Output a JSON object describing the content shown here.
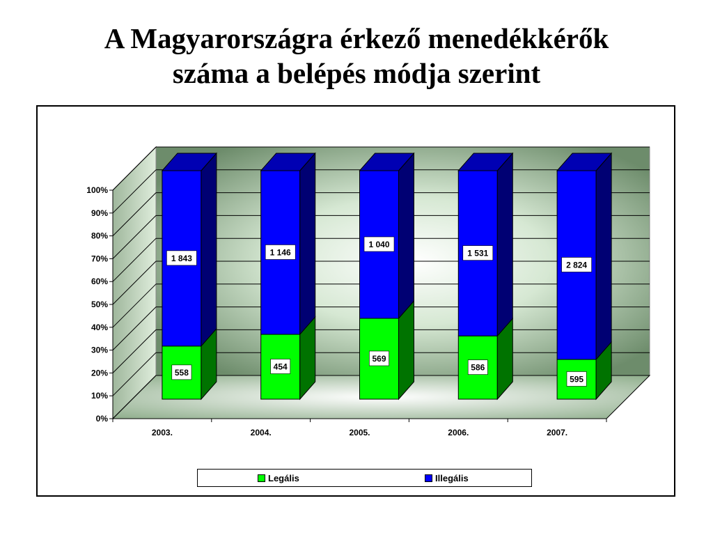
{
  "slide": {
    "title_lines": [
      "A Magyarországra érkező menedékkérők",
      "száma a belépés módja szerint"
    ]
  },
  "chart_data": {
    "type": "bar",
    "stacked": "percent",
    "three_d": true,
    "title": "",
    "xlabel": "",
    "ylabel": "",
    "categories": [
      "2003.",
      "2004.",
      "2005.",
      "2006.",
      "2007."
    ],
    "series": [
      {
        "name": "Legális",
        "color": "#00ff00",
        "values": [
          558,
          454,
          569,
          586,
          595
        ],
        "labels": [
          "558",
          "454",
          "569",
          "586",
          "595"
        ]
      },
      {
        "name": "Illegális",
        "color": "#0000ff",
        "values": [
          1843,
          1146,
          1040,
          1531,
          2824
        ],
        "labels": [
          "1 843",
          "1 146",
          "1 040",
          "1 531",
          "2 824"
        ]
      }
    ],
    "ylim": [
      0,
      1
    ],
    "yticks": [
      "0%",
      "10%",
      "20%",
      "30%",
      "40%",
      "50%",
      "60%",
      "70%",
      "80%",
      "90%",
      "100%"
    ],
    "grid": true,
    "legend_position": "bottom"
  }
}
